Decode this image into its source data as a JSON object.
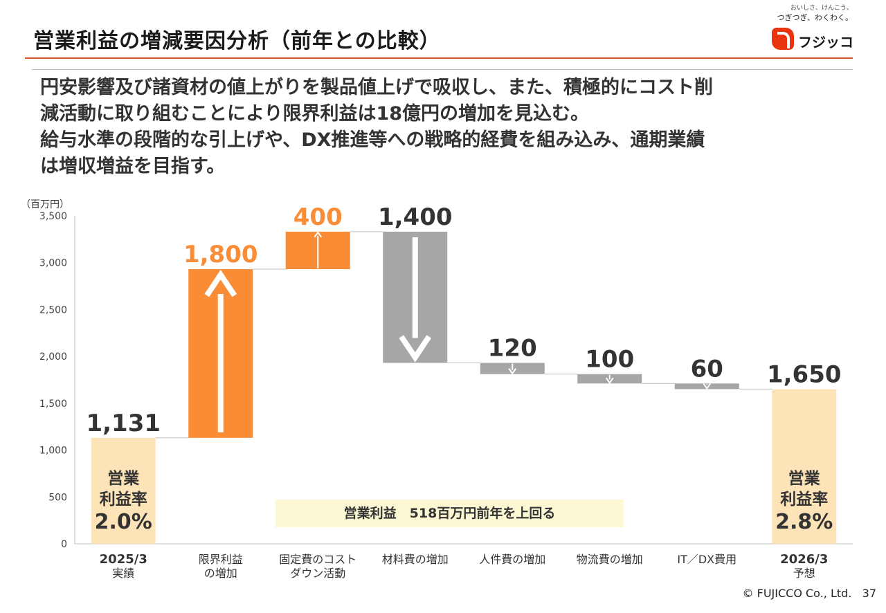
{
  "header": {
    "title": "営業利益の増減要因分析（前年との比較）",
    "tagline_line1": "おいしさ、けんこう、",
    "tagline_line2": "つぎつぎ、わくわく。",
    "logo_text": "フジッコ"
  },
  "lead": [
    "円安影響及び諸資材の値上がりを製品値上げで吸収し、また、積極的にコスト削",
    "減活動に取り組むことにより限界利益は18億円の増加を見込む。",
    "給与水準の段階的な引上げや、DX推進等への戦略的経費を組み込み、通期業績",
    "は増収増益を目指す。"
  ],
  "colors": {
    "increase": "#f98c35",
    "decrease": "#a6a6a6",
    "total": "#fde3b8",
    "increase_label": "#f98c35",
    "label": "#333333",
    "accent_rule": "#d2552a"
  },
  "chart_data": {
    "type": "bar",
    "subtype": "waterfall",
    "unit_label": "（百万円）",
    "ylim": [
      0,
      3500
    ],
    "yticks": [
      0,
      500,
      1000,
      1500,
      2000,
      2500,
      3000,
      3500
    ],
    "ytick_labels": [
      "0",
      "500",
      "1,000",
      "1,500",
      "2,000",
      "2,500",
      "3,000",
      "3,500"
    ],
    "grid": false,
    "bars": [
      {
        "category": [
          "2025/3",
          "実績"
        ],
        "kind": "total",
        "start": 0,
        "end": 1131,
        "label": "1,131"
      },
      {
        "category": [
          "限界利益",
          "の増加"
        ],
        "kind": "increase",
        "start": 1131,
        "end": 2931,
        "label": "1,800"
      },
      {
        "category": [
          "固定費のコスト",
          "ダウン活動"
        ],
        "kind": "increase",
        "start": 2931,
        "end": 3331,
        "label": "400"
      },
      {
        "category": [
          "材料費の増加"
        ],
        "kind": "decrease",
        "start": 3331,
        "end": 1931,
        "label": "1,400"
      },
      {
        "category": [
          "人件費の増加"
        ],
        "kind": "decrease",
        "start": 1931,
        "end": 1811,
        "label": "120"
      },
      {
        "category": [
          "物流費の増加"
        ],
        "kind": "decrease",
        "start": 1811,
        "end": 1711,
        "label": "100"
      },
      {
        "category": [
          "IT／DX費用"
        ],
        "kind": "decrease",
        "start": 1711,
        "end": 1651,
        "label": "60"
      },
      {
        "category": [
          "2026/3",
          "予想"
        ],
        "kind": "total",
        "start": 0,
        "end": 1650,
        "label": "1,650"
      }
    ],
    "annotation": "営業利益　518百万円前年を上回る",
    "margin_left": {
      "title": [
        "営業",
        "利益率"
      ],
      "value": "2.0%"
    },
    "margin_right": {
      "title": [
        "営業",
        "利益率"
      ],
      "value": "2.8%"
    }
  },
  "footer": {
    "copyright": "© FUJICCO Co., Ltd.",
    "page": "37"
  }
}
